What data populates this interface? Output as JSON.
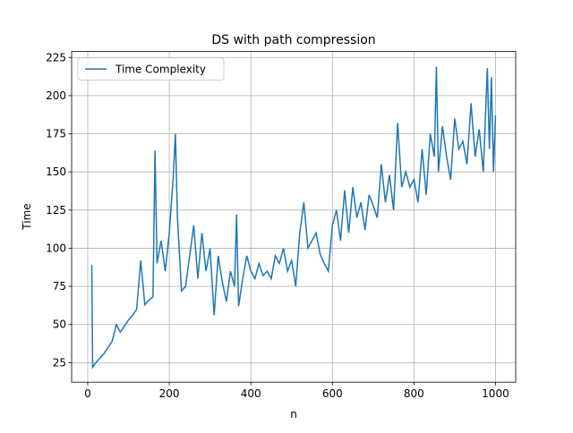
{
  "chart_data": {
    "type": "line",
    "title": "DS with path compression",
    "x_label": "n",
    "y_label": "Time",
    "series": [
      {
        "name": "Time Complexity",
        "color": "#1f77b4",
        "x": [
          10,
          12,
          20,
          30,
          40,
          50,
          60,
          70,
          80,
          90,
          100,
          110,
          120,
          130,
          140,
          150,
          160,
          165,
          170,
          180,
          190,
          200,
          210,
          215,
          220,
          230,
          240,
          250,
          260,
          270,
          280,
          290,
          300,
          310,
          320,
          330,
          340,
          350,
          360,
          365,
          370,
          380,
          390,
          400,
          410,
          420,
          430,
          440,
          450,
          460,
          470,
          480,
          490,
          500,
          510,
          520,
          530,
          540,
          550,
          560,
          570,
          580,
          590,
          600,
          610,
          620,
          630,
          640,
          650,
          660,
          670,
          680,
          690,
          700,
          710,
          720,
          730,
          740,
          750,
          760,
          770,
          780,
          790,
          800,
          810,
          820,
          830,
          840,
          850,
          855,
          860,
          870,
          880,
          890,
          900,
          910,
          920,
          930,
          940,
          950,
          960,
          970,
          980,
          985,
          990,
          995,
          1000
        ],
        "values": [
          89,
          22,
          25,
          28,
          31,
          35,
          39,
          50,
          45,
          49,
          53,
          56,
          60,
          92,
          63,
          66,
          68,
          164,
          90,
          105,
          85,
          110,
          148,
          175,
          120,
          72,
          75,
          95,
          115,
          80,
          110,
          85,
          100,
          56,
          95,
          78,
          65,
          85,
          75,
          122,
          62,
          80,
          95,
          85,
          80,
          90,
          82,
          85,
          80,
          95,
          90,
          100,
          85,
          92,
          75,
          110,
          130,
          100,
          105,
          110,
          96,
          90,
          85,
          115,
          125,
          105,
          138,
          110,
          140,
          120,
          130,
          112,
          135,
          128,
          120,
          155,
          130,
          148,
          125,
          182,
          140,
          150,
          140,
          145,
          130,
          165,
          135,
          175,
          160,
          219,
          150,
          180,
          160,
          145,
          185,
          165,
          170,
          155,
          195,
          160,
          178,
          150,
          218,
          165,
          212,
          150,
          187
        ]
      }
    ],
    "xlim": [
      -39.5,
      1049.5
    ],
    "ylim": [
      12.2,
      228.9
    ],
    "xticks": [
      0,
      200,
      400,
      600,
      800,
      1000
    ],
    "yticks": [
      25,
      50,
      75,
      100,
      125,
      150,
      175,
      200,
      225
    ],
    "grid": true,
    "legend": "upper left"
  }
}
